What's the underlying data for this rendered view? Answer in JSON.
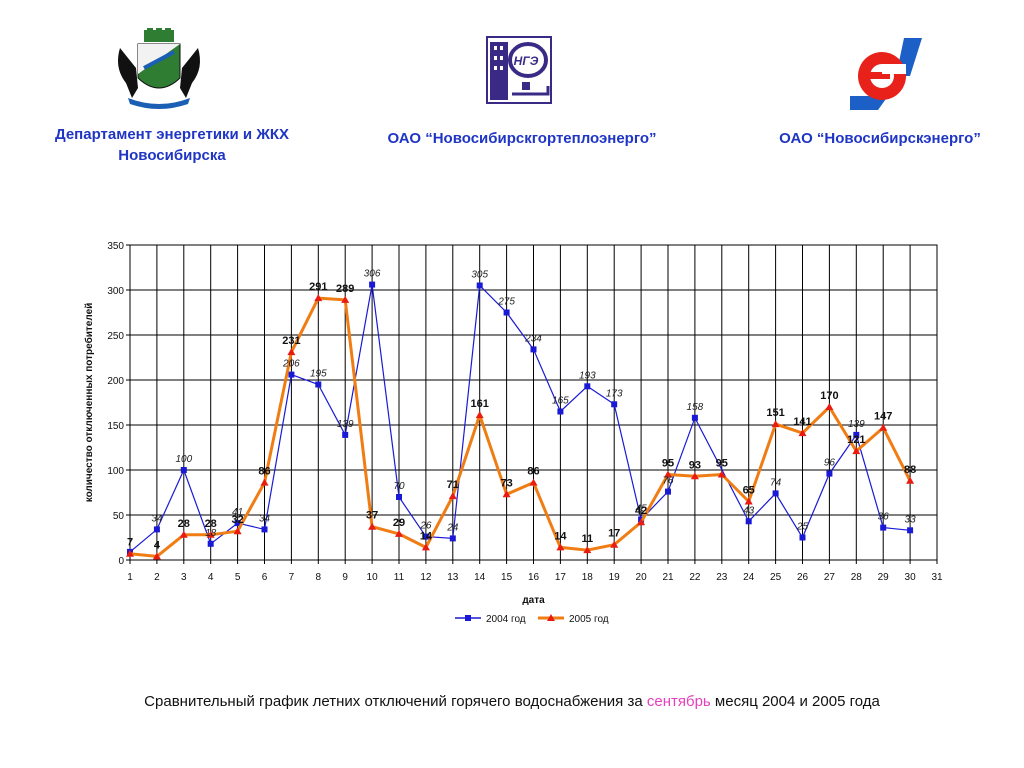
{
  "orgs": [
    {
      "name_line1": "Департамент энергетики и ЖКХ",
      "name_line2": "Новосибирска"
    },
    {
      "name_line1": "ОАО “Новосибирскгортеплоэнерго”"
    },
    {
      "name_line1": "ОАО “Новосибирскэнерго”"
    }
  ],
  "logos": {
    "center_text": "НГЭ",
    "right_letter": "Э"
  },
  "caption": {
    "before": "Сравнительный график летних отключений горячего водоснабжения за ",
    "highlight": "сентябрь",
    "after": " месяц 2004 и 2005 года"
  },
  "colors": {
    "title": "#1f35c4",
    "series_2004": "#1a1ad6",
    "series_2005": "#f07d14",
    "marker_2005": "#e81c10",
    "caption_highlight": "#e83fbf"
  },
  "chart_data": {
    "type": "line",
    "xlabel": "дата",
    "ylabel": "количество отключенных потребителей",
    "xlim": [
      1,
      31
    ],
    "ylim": [
      0,
      350
    ],
    "yticks": [
      0,
      50,
      100,
      150,
      200,
      250,
      300,
      350
    ],
    "xticks": [
      1,
      2,
      3,
      4,
      5,
      6,
      7,
      8,
      9,
      10,
      11,
      12,
      13,
      14,
      15,
      16,
      17,
      18,
      19,
      20,
      21,
      22,
      23,
      24,
      25,
      26,
      27,
      28,
      29,
      30,
      31
    ],
    "grid": true,
    "legend_position": "bottom",
    "series": [
      {
        "name": "2004 год",
        "x": [
          1,
          2,
          3,
          4,
          5,
          6,
          7,
          8,
          9,
          10,
          11,
          12,
          13,
          14,
          15,
          16,
          17,
          18,
          19,
          20,
          21,
          22,
          24,
          25,
          26,
          27,
          28,
          29,
          30
        ],
        "values": [
          9,
          34,
          100,
          18,
          41,
          34,
          206,
          195,
          139,
          306,
          70,
          26,
          24,
          305,
          275,
          234,
          165,
          193,
          173,
          45,
          76,
          158,
          43,
          74,
          25,
          96,
          139,
          36,
          33
        ],
        "labels": [
          "",
          "34",
          "100",
          "18",
          "41",
          "34",
          "206",
          "195",
          "139",
          "306",
          "70",
          "26",
          "24",
          "305",
          "275",
          "234",
          "165",
          "193",
          "173",
          "45",
          "76",
          "158",
          "43",
          "74",
          "25",
          "96",
          "139",
          "36",
          "33"
        ]
      },
      {
        "name": "2005 год",
        "x": [
          1,
          2,
          3,
          4,
          5,
          6,
          7,
          8,
          9,
          10,
          11,
          12,
          13,
          14,
          15,
          16,
          17,
          18,
          19,
          20,
          21,
          22,
          23,
          24,
          25,
          26,
          27,
          28,
          29,
          30
        ],
        "values": [
          7,
          4,
          28,
          28,
          32,
          86,
          231,
          291,
          289,
          37,
          29,
          14,
          71,
          161,
          73,
          86,
          14,
          11,
          17,
          42,
          95,
          93,
          95,
          65,
          151,
          141,
          170,
          121,
          147,
          88
        ],
        "labels": [
          "7",
          "4",
          "28",
          "28",
          "32",
          "86",
          "231",
          "291",
          "289",
          "37",
          "29",
          "14",
          "71",
          "161",
          "73",
          "86",
          "14",
          "11",
          "17",
          "42",
          "95",
          "93",
          "95",
          "65",
          "151",
          "141",
          "170",
          "121",
          "147",
          "88"
        ]
      }
    ]
  }
}
